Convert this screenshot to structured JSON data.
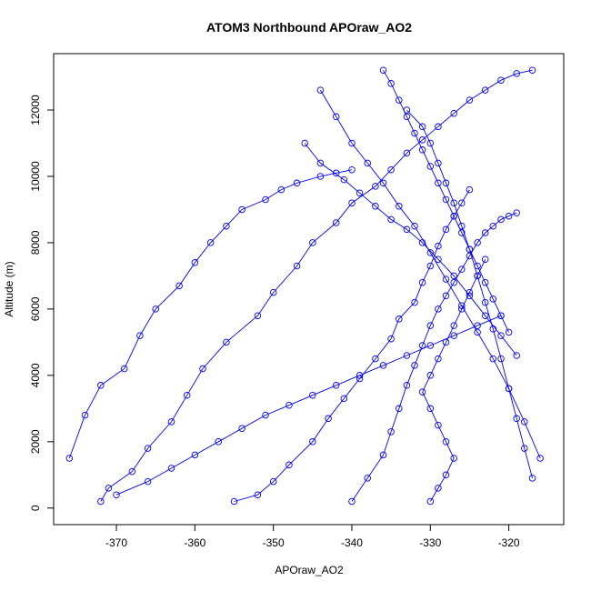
{
  "chart_data": {
    "type": "line",
    "title": "ATOM3 Northbound APOraw_AO2",
    "xlabel": "APOraw_AO2",
    "ylabel": "Altitude (m)",
    "xlim": [
      -378,
      -313
    ],
    "ylim": [
      -500,
      13700
    ],
    "x_ticks": [
      -370,
      -360,
      -350,
      -340,
      -330,
      -320
    ],
    "y_ticks": [
      0,
      2000,
      4000,
      6000,
      8000,
      10000,
      12000
    ],
    "grid": false,
    "legend": "none",
    "line_color": "#0000ff",
    "marker": "open-circle",
    "series": [
      {
        "x": [
          -372,
          -371,
          -368,
          -366,
          -363,
          -361,
          -359,
          -356,
          -352,
          -350,
          -347,
          -345,
          -342,
          -340,
          -337,
          -335,
          -333,
          -331,
          -329,
          -327,
          -325,
          -323,
          -321,
          -319,
          -317
        ],
        "y": [
          200,
          600,
          1100,
          1800,
          2600,
          3400,
          4200,
          5000,
          5800,
          6500,
          7300,
          8000,
          8600,
          9200,
          9700,
          10200,
          10700,
          11100,
          11500,
          11900,
          12300,
          12600,
          12900,
          13100,
          13200
        ]
      },
      {
        "x": [
          -376,
          -374,
          -372,
          -369,
          -367,
          -365,
          -362,
          -360,
          -358,
          -356,
          -354,
          -351,
          -349,
          -347,
          -344,
          -342,
          -340
        ],
        "y": [
          1500,
          2800,
          3700,
          4200,
          5200,
          6000,
          6700,
          7400,
          8000,
          8500,
          9000,
          9300,
          9600,
          9800,
          10000,
          10100,
          10200
        ]
      },
      {
        "x": [
          -355,
          -352,
          -350,
          -348,
          -345,
          -343,
          -341,
          -339,
          -337,
          -335,
          -334,
          -332,
          -331,
          -330,
          -329,
          -328,
          -327,
          -326,
          -325
        ],
        "y": [
          200,
          400,
          800,
          1300,
          2000,
          2700,
          3300,
          3900,
          4500,
          5100,
          5700,
          6200,
          6800,
          7300,
          7900,
          8400,
          8800,
          9200,
          9600
        ]
      },
      {
        "x": [
          -340,
          -338,
          -336,
          -335,
          -334,
          -333,
          -332,
          -331,
          -330,
          -329,
          -328,
          -327,
          -326,
          -325,
          -324,
          -323,
          -322,
          -321,
          -320,
          -319
        ],
        "y": [
          200,
          900,
          1600,
          2300,
          3000,
          3700,
          4300,
          4900,
          5500,
          6000,
          6400,
          6800,
          7200,
          7600,
          8000,
          8300,
          8500,
          8700,
          8800,
          8900
        ]
      },
      {
        "x": [
          -333,
          -331,
          -330,
          -329,
          -328,
          -327,
          -326,
          -325,
          -324,
          -323,
          -322,
          -321,
          -320,
          -319,
          -318,
          -317
        ],
        "y": [
          12000,
          11500,
          11000,
          10400,
          9800,
          9200,
          8500,
          7800,
          7000,
          6200,
          5400,
          4500,
          3600,
          2700,
          1800,
          900
        ]
      },
      {
        "x": [
          -344,
          -342,
          -340,
          -338,
          -336,
          -334,
          -332,
          -330,
          -328,
          -326,
          -324,
          -322,
          -320,
          -318,
          -316
        ],
        "y": [
          12600,
          11800,
          11000,
          10400,
          9800,
          9100,
          8500,
          7700,
          6900,
          6100,
          5300,
          4500,
          3600,
          2600,
          1500
        ]
      },
      {
        "x": [
          -346,
          -344,
          -341,
          -339,
          -337,
          -335,
          -333,
          -331,
          -329,
          -327,
          -325,
          -323,
          -321,
          -319
        ],
        "y": [
          11000,
          10400,
          9900,
          9500,
          9100,
          8700,
          8400,
          8000,
          7500,
          7000,
          6400,
          5800,
          5200,
          4600
        ]
      },
      {
        "x": [
          -370,
          -366,
          -363,
          -360,
          -357,
          -354,
          -351,
          -348,
          -345,
          -342,
          -339,
          -336,
          -333,
          -330,
          -327,
          -324,
          -321
        ],
        "y": [
          400,
          800,
          1200,
          1600,
          2000,
          2400,
          2800,
          3100,
          3400,
          3700,
          4000,
          4300,
          4600,
          4900,
          5200,
          5500,
          5800
        ]
      },
      {
        "x": [
          -330,
          -329,
          -328,
          -327,
          -328,
          -329,
          -330,
          -331,
          -330,
          -329,
          -328,
          -327,
          -326,
          -325,
          -324,
          -323
        ],
        "y": [
          200,
          600,
          1000,
          1500,
          2000,
          2500,
          3000,
          3500,
          4000,
          4500,
          5000,
          5500,
          6000,
          6500,
          7000,
          7500
        ]
      },
      {
        "x": [
          -336,
          -335,
          -334,
          -333,
          -332,
          -331,
          -330,
          -329,
          -328,
          -327,
          -326,
          -325,
          -324,
          -323,
          -322,
          -321,
          -320
        ],
        "y": [
          13200,
          12800,
          12300,
          11800,
          11300,
          10800,
          10300,
          9800,
          9300,
          8800,
          8300,
          7800,
          7300,
          6800,
          6300,
          5800,
          5300
        ]
      }
    ]
  }
}
